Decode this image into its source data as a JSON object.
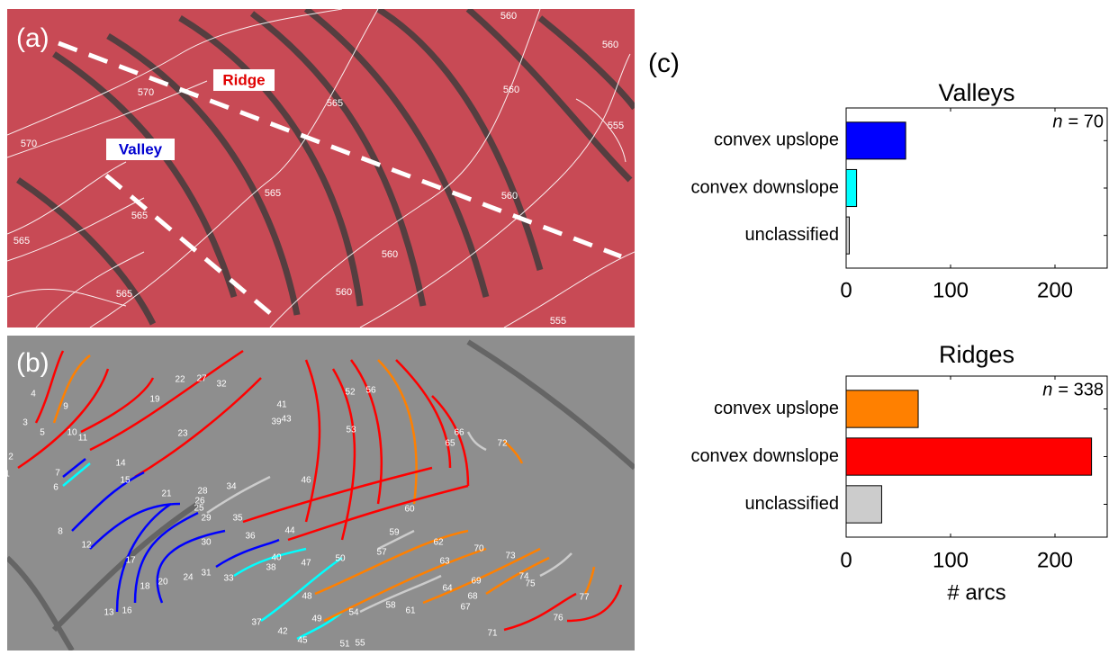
{
  "panels": {
    "a": {
      "label": "(a)",
      "ridge_label": "Ridge",
      "valley_label": "Valley",
      "contour_labels": [
        "560",
        "560",
        "570",
        "570",
        "565",
        "560",
        "555",
        "565",
        "565",
        "565",
        "565",
        "560",
        "560",
        "560",
        "555"
      ]
    },
    "b": {
      "label": "(b)",
      "arc_labels": [
        1,
        2,
        3,
        4,
        5,
        6,
        7,
        8,
        9,
        10,
        11,
        12,
        13,
        14,
        15,
        16,
        17,
        18,
        19,
        20,
        21,
        22,
        23,
        24,
        25,
        26,
        27,
        28,
        29,
        30,
        31,
        32,
        33,
        34,
        35,
        36,
        37,
        38,
        39,
        40,
        41,
        42,
        43,
        44,
        45,
        46,
        47,
        48,
        49,
        50,
        51,
        52,
        53,
        54,
        55,
        56,
        57,
        58,
        59,
        60,
        61,
        62,
        63,
        64,
        65,
        66,
        67,
        68,
        69,
        70,
        71,
        72,
        73,
        74,
        75,
        76,
        77
      ]
    },
    "c": {
      "label": "(c)"
    }
  },
  "chart_data": [
    {
      "type": "barh",
      "title": "Valleys",
      "categories": [
        "convex upslope",
        "convex downslope",
        "unclassified"
      ],
      "values": [
        57,
        10,
        3
      ],
      "colors": [
        "#0000ff",
        "#00ffff",
        "#cccccc"
      ],
      "xlim": [
        0,
        250
      ],
      "xticks": [
        0,
        100,
        200
      ],
      "annotation_var": "n",
      "annotation": "= 70"
    },
    {
      "type": "barh",
      "title": "Ridges",
      "categories": [
        "convex upslope",
        "convex downslope",
        "unclassified"
      ],
      "values": [
        69,
        235,
        34
      ],
      "colors": [
        "#ff8000",
        "#ff0000",
        "#cccccc"
      ],
      "xlim": [
        0,
        250
      ],
      "xticks": [
        0,
        100,
        200
      ],
      "xlabel": "# arcs",
      "annotation_var": "n",
      "annotation": "= 338"
    }
  ]
}
